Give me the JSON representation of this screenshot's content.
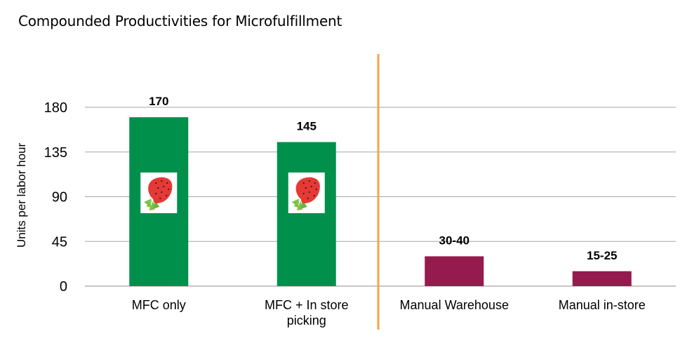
{
  "chart_data": {
    "type": "bar",
    "title": "Compounded Productivities for Microfulfillment",
    "ylabel": "Units per labor hour",
    "xlabel": "",
    "ylim": [
      0,
      180
    ],
    "yticks": [
      0,
      45,
      90,
      135,
      180
    ],
    "grid": true,
    "categories": [
      [
        "MFC only"
      ],
      [
        "MFC + In store",
        "picking"
      ],
      [
        "Manual Warehouse"
      ],
      [
        "Manual in-store"
      ]
    ],
    "values": [
      170,
      145,
      30,
      15
    ],
    "data_labels": [
      "170",
      "145",
      "30-40",
      "15-25"
    ],
    "colors": [
      "#00904C",
      "#00904C",
      "#951A4E",
      "#951A4E"
    ],
    "icons": [
      "strawberry-icon",
      "strawberry-icon",
      null,
      null
    ],
    "separator_color": "#F5A44A"
  }
}
